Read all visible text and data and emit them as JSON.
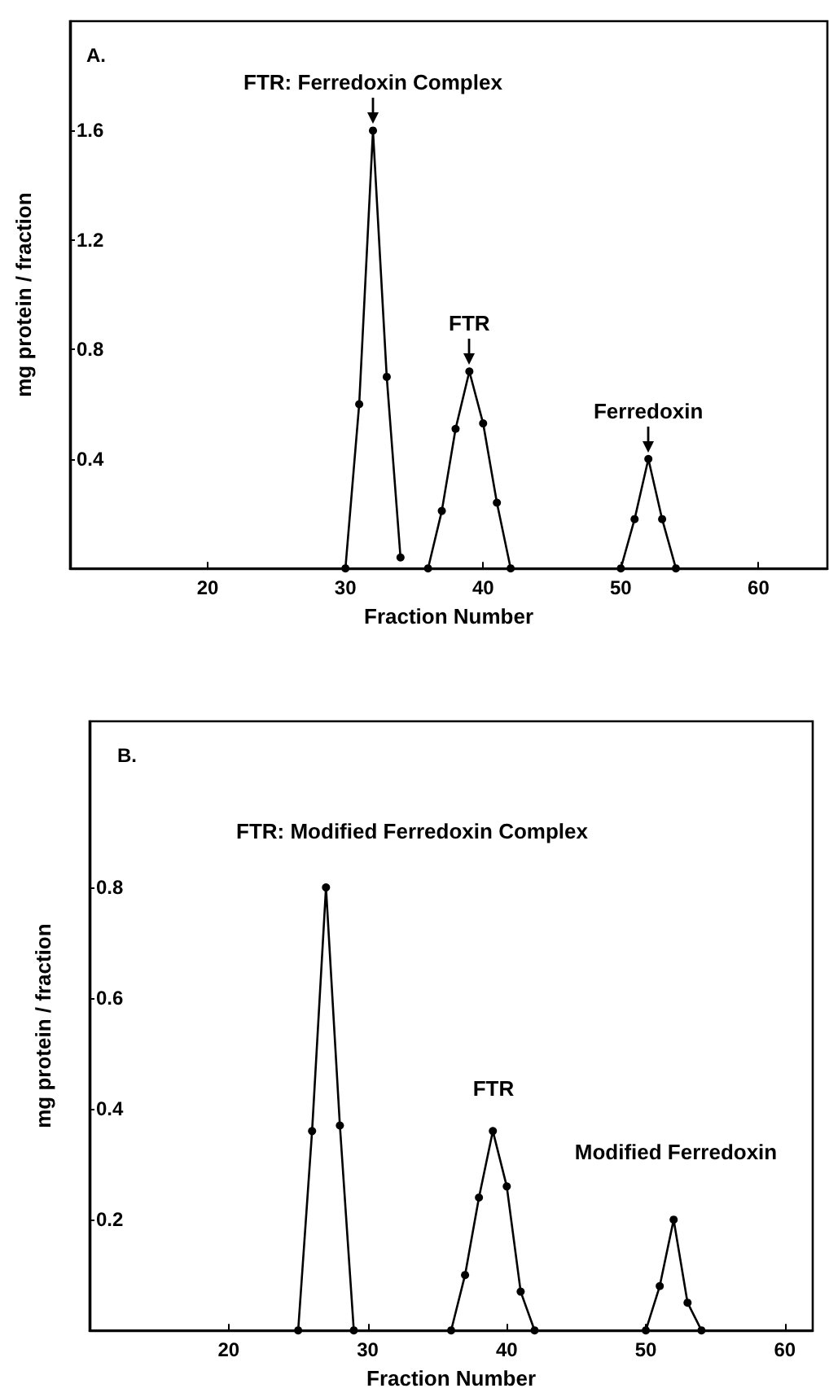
{
  "chart_data": [
    {
      "type": "line",
      "title": "A.",
      "xlabel": "Fraction Number",
      "ylabel": "mg protein / fraction",
      "xlim": [
        10,
        65
      ],
      "xticks": [
        20,
        30,
        40,
        50,
        60
      ],
      "ylim": [
        0,
        2
      ],
      "yticks": [
        0.4,
        0.8,
        1.2,
        1.6
      ],
      "marker": "circle",
      "line_style": "solid",
      "series": [
        {
          "color": "#000000",
          "x": [
            30,
            31,
            32,
            33,
            34
          ],
          "values": [
            0,
            0.6,
            1.6,
            0.7,
            0.04
          ]
        },
        {
          "color": "#000000",
          "x": [
            36,
            37,
            38,
            39,
            40,
            41,
            42
          ],
          "values": [
            0,
            0.21,
            0.51,
            0.72,
            0.53,
            0.24,
            0
          ]
        },
        {
          "color": "#000000",
          "x": [
            50,
            51,
            52,
            53,
            54
          ],
          "values": [
            0,
            0.18,
            0.4,
            0.18,
            0
          ]
        }
      ],
      "annotations": [
        {
          "text": "FTR: Ferredoxin Complex",
          "x": 32,
          "y": 1.6
        },
        {
          "text": "FTR",
          "x": 39,
          "y": 0.72
        },
        {
          "text": "Ferredoxin",
          "x": 52,
          "y": 0.4
        }
      ]
    },
    {
      "type": "line",
      "title": "B.",
      "xlabel": "Fraction Number",
      "ylabel": "mg protein / fraction",
      "xlim": [
        10,
        62
      ],
      "xticks": [
        20,
        30,
        40,
        50,
        60
      ],
      "ylim": [
        0,
        1.1
      ],
      "yticks": [
        0.2,
        0.4,
        0.6,
        0.8
      ],
      "marker": "circle",
      "line_style": "solid",
      "series": [
        {
          "color": "#000000",
          "x": [
            25,
            26,
            27,
            28,
            29
          ],
          "values": [
            0,
            0.36,
            0.8,
            0.37,
            0
          ]
        },
        {
          "color": "#000000",
          "x": [
            36,
            37,
            38,
            39,
            40,
            41,
            42
          ],
          "values": [
            0,
            0.1,
            0.24,
            0.36,
            0.26,
            0.07,
            0
          ]
        },
        {
          "color": "#000000",
          "x": [
            50,
            51,
            52,
            53,
            54
          ],
          "values": [
            0,
            0.08,
            0.2,
            0.05,
            0
          ]
        }
      ],
      "annotations": [
        "FTR: Modified Ferredoxin Complex",
        "FTR",
        "Modified Ferredoxin"
      ]
    }
  ]
}
